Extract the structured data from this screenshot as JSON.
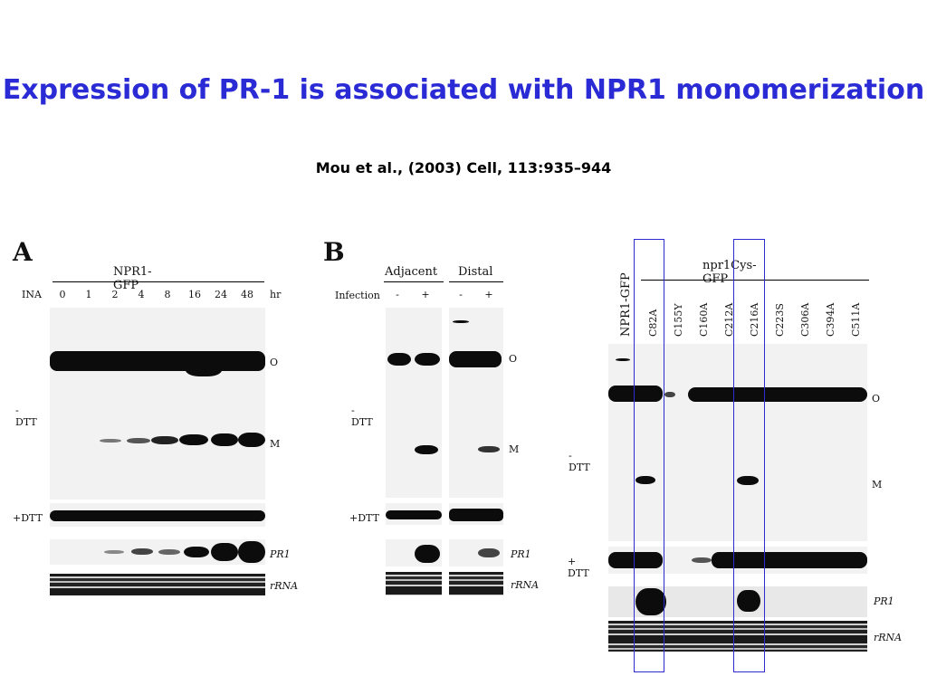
{
  "slide": {
    "title": "Expression of PR-1 is associated with NPR1 monomerization",
    "citation": "Mou et al., (2003) Cell, 113:935–944"
  },
  "panelA": {
    "label": "A",
    "header": "NPR1-GFP",
    "row_label": "INA",
    "lanes": [
      "0",
      "1",
      "2",
      "4",
      "8",
      "16",
      "24",
      "48"
    ],
    "unit": "hr",
    "dtt_minus": "-DTT",
    "dtt_plus": "+DTT",
    "band_o": "O",
    "band_m": "M",
    "pr1": "PR1",
    "rrna": "rRNA"
  },
  "panelB": {
    "label": "B",
    "group1": "Adjacent",
    "group2": "Distal",
    "row_label": "Infection",
    "lanes": [
      "-",
      "+",
      "-",
      "+"
    ],
    "dtt_minus": "-DTT",
    "dtt_plus": "+DTT",
    "band_o": "O",
    "band_m": "M",
    "pr1": "PR1",
    "rrna": "rRNA"
  },
  "panelC": {
    "first_lane": "NPR1-GFP",
    "header": "npr1Cys-GFP",
    "lanes": [
      "C82A",
      "C155Y",
      "C160A",
      "C212A",
      "C216A",
      "C223S",
      "C306A",
      "C394A",
      "C511A"
    ],
    "dtt_minus": "- DTT",
    "dtt_plus": "+ DTT",
    "band_o": "O",
    "band_m": "M",
    "pr1": "PR1",
    "rrna": "rRNA"
  },
  "colors": {
    "title": "#2b2bd6",
    "highlight_box": "#2b2bd6"
  }
}
